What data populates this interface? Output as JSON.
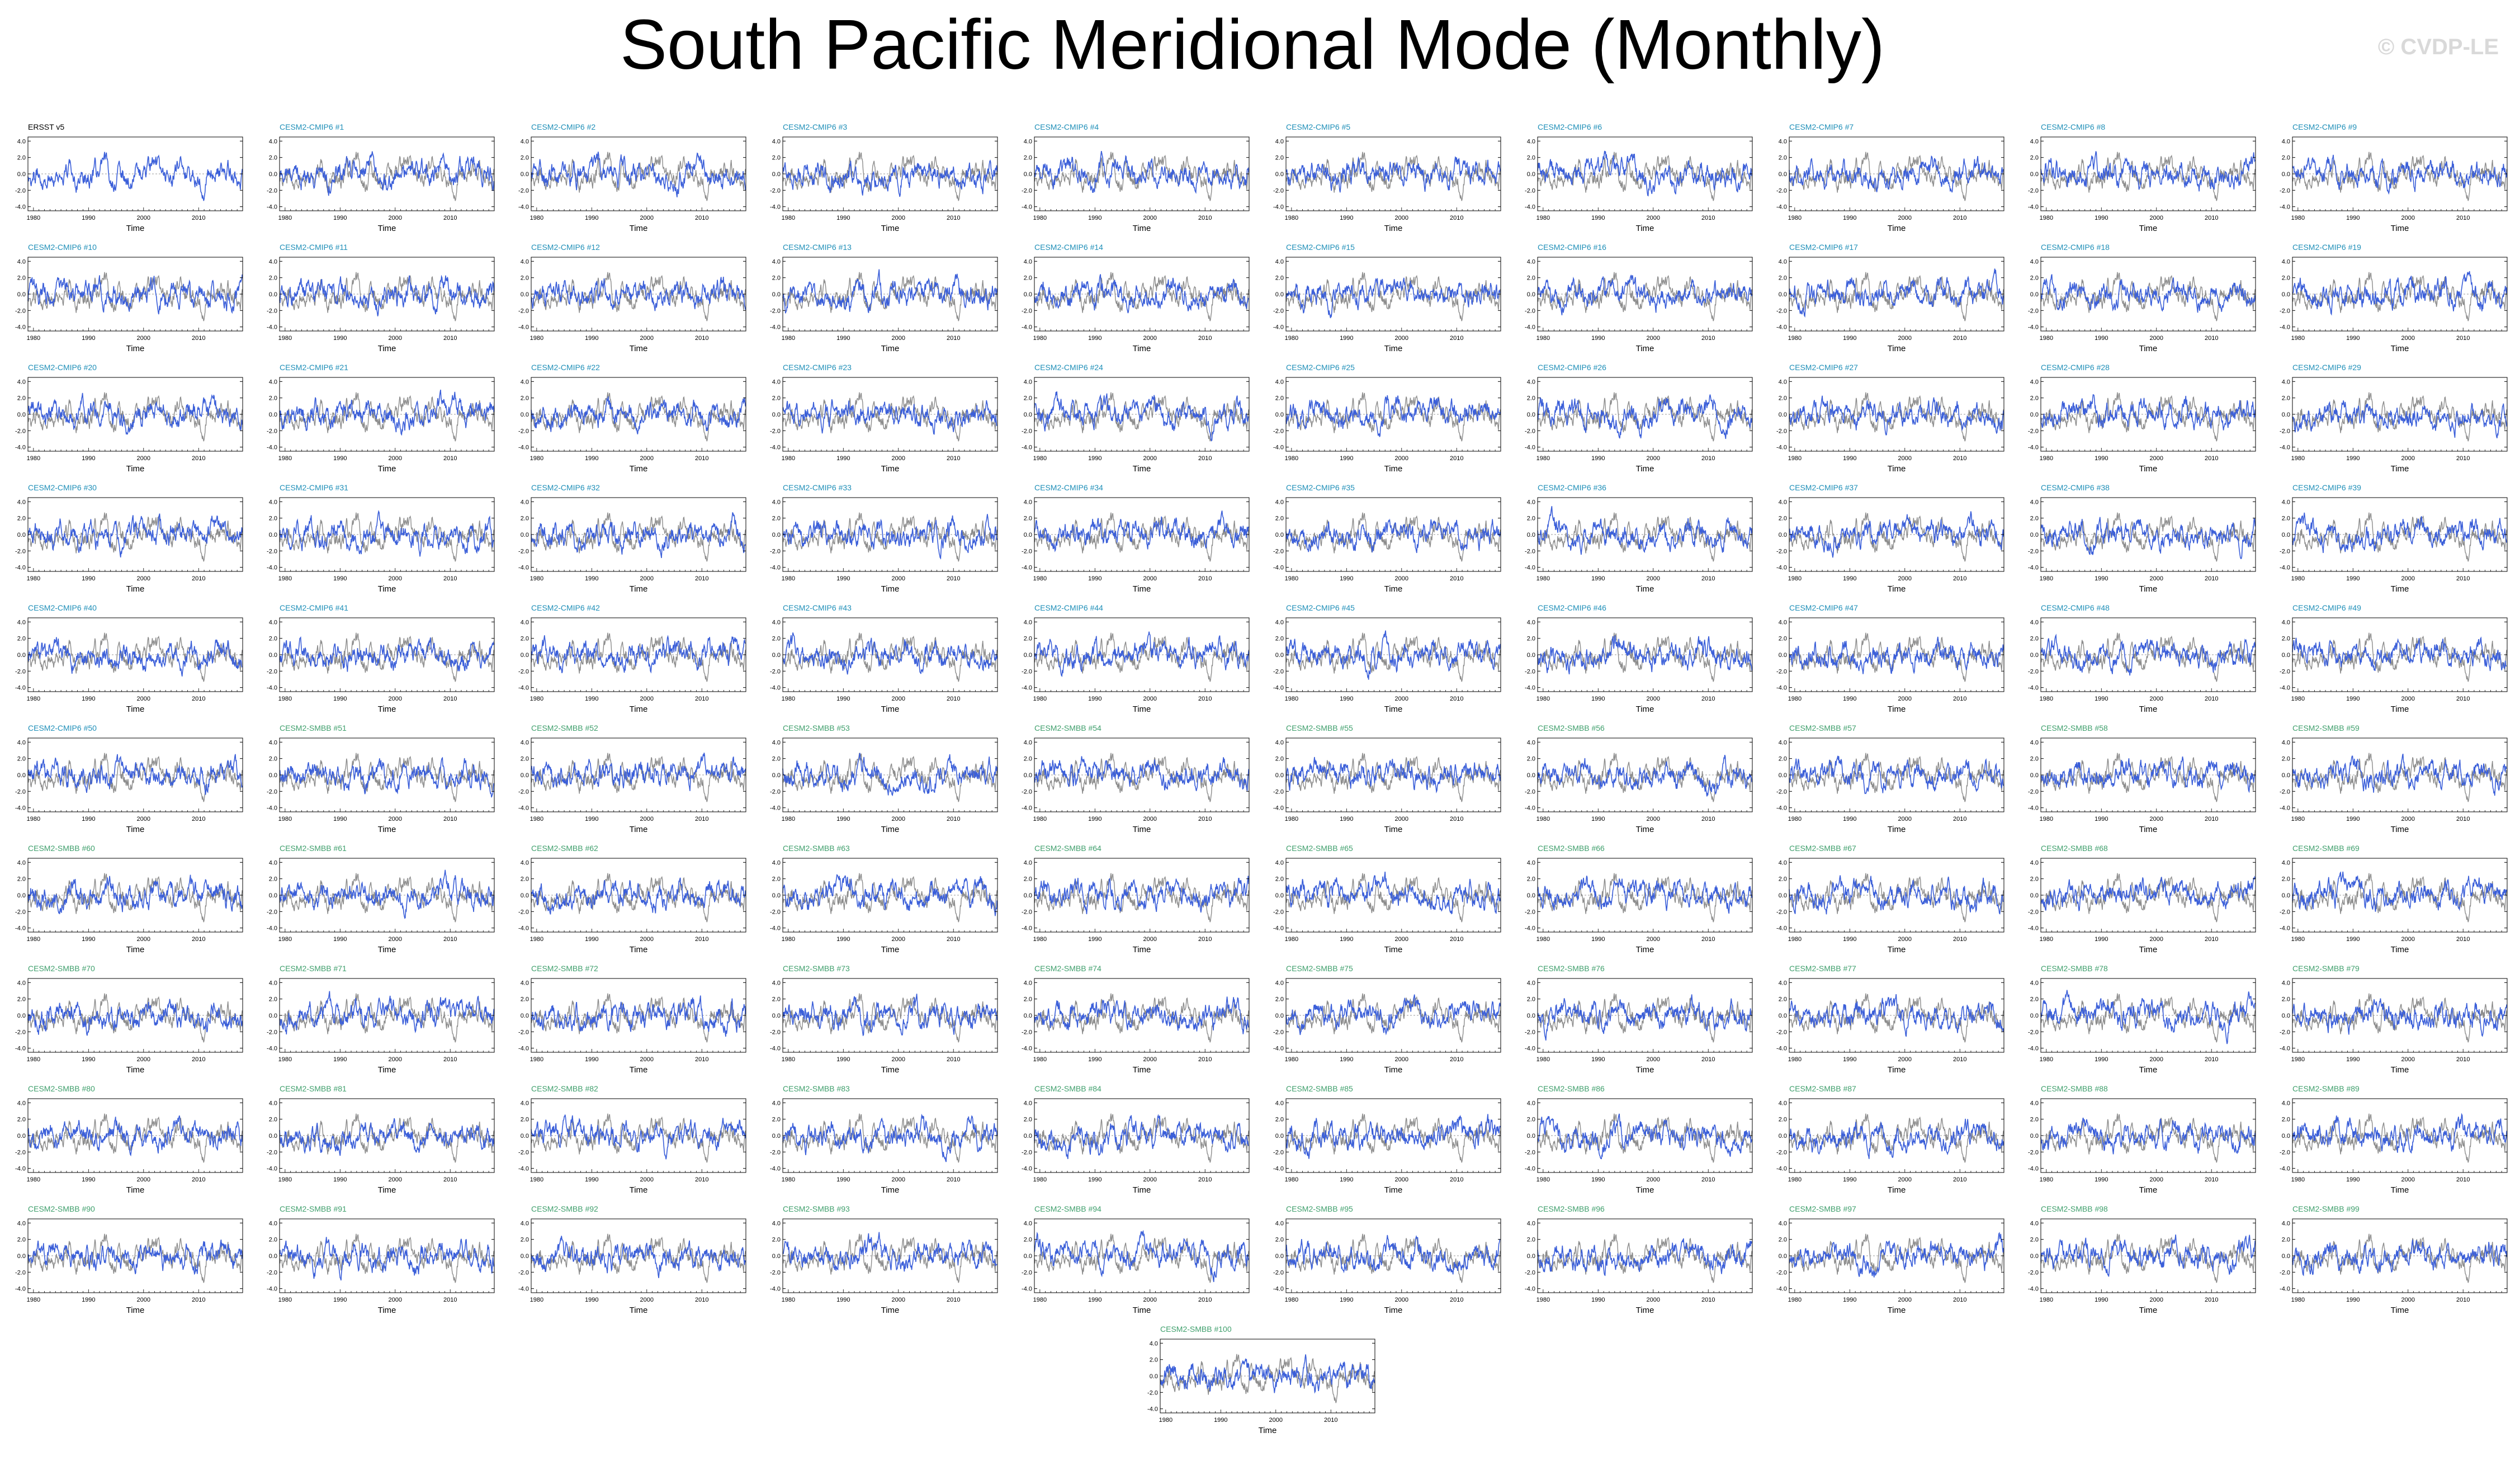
{
  "title": "South Pacific Meridional Mode (Monthly)",
  "watermark": "© CVDP-LE",
  "colors": {
    "observation_line": "#111111",
    "model_line": "#3b5fd9",
    "model_background_line": "#8c8c8c",
    "cmip6_title": "#1f8fb8",
    "smbb_title": "#3f9f6c",
    "obs_title": "#000000"
  },
  "chart_data": {
    "type": "line",
    "layout": "grid of 101 small multiples, 10 per row",
    "x_range": [
      1979,
      2018
    ],
    "x_ticks": [
      1980,
      1990,
      2000,
      2010
    ],
    "x_label": "Time",
    "y_ticks": [
      "4.0",
      "2.0",
      "0.0",
      "-2.0",
      "-4.0"
    ],
    "y_range": [
      -4.5,
      4.5
    ],
    "series_note": "monthly index; each model panel overlays the observed series",
    "panels": [
      {
        "title": "ERSST v5",
        "kind": "obs"
      },
      {
        "title": "CESM2-CMIP6 #1",
        "kind": "cmip6"
      },
      {
        "title": "CESM2-CMIP6 #2",
        "kind": "cmip6"
      },
      {
        "title": "CESM2-CMIP6 #3",
        "kind": "cmip6"
      },
      {
        "title": "CESM2-CMIP6 #4",
        "kind": "cmip6"
      },
      {
        "title": "CESM2-CMIP6 #5",
        "kind": "cmip6"
      },
      {
        "title": "CESM2-CMIP6 #6",
        "kind": "cmip6"
      },
      {
        "title": "CESM2-CMIP6 #7",
        "kind": "cmip6"
      },
      {
        "title": "CESM2-CMIP6 #8",
        "kind": "cmip6"
      },
      {
        "title": "CESM2-CMIP6 #9",
        "kind": "cmip6"
      },
      {
        "title": "CESM2-CMIP6 #10",
        "kind": "cmip6"
      },
      {
        "title": "CESM2-CMIP6 #11",
        "kind": "cmip6"
      },
      {
        "title": "CESM2-CMIP6 #12",
        "kind": "cmip6"
      },
      {
        "title": "CESM2-CMIP6 #13",
        "kind": "cmip6"
      },
      {
        "title": "CESM2-CMIP6 #14",
        "kind": "cmip6"
      },
      {
        "title": "CESM2-CMIP6 #15",
        "kind": "cmip6"
      },
      {
        "title": "CESM2-CMIP6 #16",
        "kind": "cmip6"
      },
      {
        "title": "CESM2-CMIP6 #17",
        "kind": "cmip6"
      },
      {
        "title": "CESM2-CMIP6 #18",
        "kind": "cmip6"
      },
      {
        "title": "CESM2-CMIP6 #19",
        "kind": "cmip6"
      },
      {
        "title": "CESM2-CMIP6 #20",
        "kind": "cmip6"
      },
      {
        "title": "CESM2-CMIP6 #21",
        "kind": "cmip6"
      },
      {
        "title": "CESM2-CMIP6 #22",
        "kind": "cmip6"
      },
      {
        "title": "CESM2-CMIP6 #23",
        "kind": "cmip6"
      },
      {
        "title": "CESM2-CMIP6 #24",
        "kind": "cmip6"
      },
      {
        "title": "CESM2-CMIP6 #25",
        "kind": "cmip6"
      },
      {
        "title": "CESM2-CMIP6 #26",
        "kind": "cmip6"
      },
      {
        "title": "CESM2-CMIP6 #27",
        "kind": "cmip6"
      },
      {
        "title": "CESM2-CMIP6 #28",
        "kind": "cmip6"
      },
      {
        "title": "CESM2-CMIP6 #29",
        "kind": "cmip6"
      },
      {
        "title": "CESM2-CMIP6 #30",
        "kind": "cmip6"
      },
      {
        "title": "CESM2-CMIP6 #31",
        "kind": "cmip6"
      },
      {
        "title": "CESM2-CMIP6 #32",
        "kind": "cmip6"
      },
      {
        "title": "CESM2-CMIP6 #33",
        "kind": "cmip6"
      },
      {
        "title": "CESM2-CMIP6 #34",
        "kind": "cmip6"
      },
      {
        "title": "CESM2-CMIP6 #35",
        "kind": "cmip6"
      },
      {
        "title": "CESM2-CMIP6 #36",
        "kind": "cmip6"
      },
      {
        "title": "CESM2-CMIP6 #37",
        "kind": "cmip6"
      },
      {
        "title": "CESM2-CMIP6 #38",
        "kind": "cmip6"
      },
      {
        "title": "CESM2-CMIP6 #39",
        "kind": "cmip6"
      },
      {
        "title": "CESM2-CMIP6 #40",
        "kind": "cmip6"
      },
      {
        "title": "CESM2-CMIP6 #41",
        "kind": "cmip6"
      },
      {
        "title": "CESM2-CMIP6 #42",
        "kind": "cmip6"
      },
      {
        "title": "CESM2-CMIP6 #43",
        "kind": "cmip6"
      },
      {
        "title": "CESM2-CMIP6 #44",
        "kind": "cmip6"
      },
      {
        "title": "CESM2-CMIP6 #45",
        "kind": "cmip6"
      },
      {
        "title": "CESM2-CMIP6 #46",
        "kind": "cmip6"
      },
      {
        "title": "CESM2-CMIP6 #47",
        "kind": "cmip6"
      },
      {
        "title": "CESM2-CMIP6 #48",
        "kind": "cmip6"
      },
      {
        "title": "CESM2-CMIP6 #49",
        "kind": "cmip6"
      },
      {
        "title": "CESM2-CMIP6 #50",
        "kind": "cmip6"
      },
      {
        "title": "CESM2-SMBB #51",
        "kind": "smbb"
      },
      {
        "title": "CESM2-SMBB #52",
        "kind": "smbb"
      },
      {
        "title": "CESM2-SMBB #53",
        "kind": "smbb"
      },
      {
        "title": "CESM2-SMBB #54",
        "kind": "smbb"
      },
      {
        "title": "CESM2-SMBB #55",
        "kind": "smbb"
      },
      {
        "title": "CESM2-SMBB #56",
        "kind": "smbb"
      },
      {
        "title": "CESM2-SMBB #57",
        "kind": "smbb"
      },
      {
        "title": "CESM2-SMBB #58",
        "kind": "smbb"
      },
      {
        "title": "CESM2-SMBB #59",
        "kind": "smbb"
      },
      {
        "title": "CESM2-SMBB #60",
        "kind": "smbb"
      },
      {
        "title": "CESM2-SMBB #61",
        "kind": "smbb"
      },
      {
        "title": "CESM2-SMBB #62",
        "kind": "smbb"
      },
      {
        "title": "CESM2-SMBB #63",
        "kind": "smbb"
      },
      {
        "title": "CESM2-SMBB #64",
        "kind": "smbb"
      },
      {
        "title": "CESM2-SMBB #65",
        "kind": "smbb"
      },
      {
        "title": "CESM2-SMBB #66",
        "kind": "smbb"
      },
      {
        "title": "CESM2-SMBB #67",
        "kind": "smbb"
      },
      {
        "title": "CESM2-SMBB #68",
        "kind": "smbb"
      },
      {
        "title": "CESM2-SMBB #69",
        "kind": "smbb"
      },
      {
        "title": "CESM2-SMBB #70",
        "kind": "smbb"
      },
      {
        "title": "CESM2-SMBB #71",
        "kind": "smbb"
      },
      {
        "title": "CESM2-SMBB #72",
        "kind": "smbb"
      },
      {
        "title": "CESM2-SMBB #73",
        "kind": "smbb"
      },
      {
        "title": "CESM2-SMBB #74",
        "kind": "smbb"
      },
      {
        "title": "CESM2-SMBB #75",
        "kind": "smbb"
      },
      {
        "title": "CESM2-SMBB #76",
        "kind": "smbb"
      },
      {
        "title": "CESM2-SMBB #77",
        "kind": "smbb"
      },
      {
        "title": "CESM2-SMBB #78",
        "kind": "smbb"
      },
      {
        "title": "CESM2-SMBB #79",
        "kind": "smbb"
      },
      {
        "title": "CESM2-SMBB #80",
        "kind": "smbb"
      },
      {
        "title": "CESM2-SMBB #81",
        "kind": "smbb"
      },
      {
        "title": "CESM2-SMBB #82",
        "kind": "smbb"
      },
      {
        "title": "CESM2-SMBB #83",
        "kind": "smbb"
      },
      {
        "title": "CESM2-SMBB #84",
        "kind": "smbb"
      },
      {
        "title": "CESM2-SMBB #85",
        "kind": "smbb"
      },
      {
        "title": "CESM2-SMBB #86",
        "kind": "smbb"
      },
      {
        "title": "CESM2-SMBB #87",
        "kind": "smbb"
      },
      {
        "title": "CESM2-SMBB #88",
        "kind": "smbb"
      },
      {
        "title": "CESM2-SMBB #89",
        "kind": "smbb"
      },
      {
        "title": "CESM2-SMBB #90",
        "kind": "smbb"
      },
      {
        "title": "CESM2-SMBB #91",
        "kind": "smbb"
      },
      {
        "title": "CESM2-SMBB #92",
        "kind": "smbb"
      },
      {
        "title": "CESM2-SMBB #93",
        "kind": "smbb"
      },
      {
        "title": "CESM2-SMBB #94",
        "kind": "smbb"
      },
      {
        "title": "CESM2-SMBB #95",
        "kind": "smbb"
      },
      {
        "title": "CESM2-SMBB #96",
        "kind": "smbb"
      },
      {
        "title": "CESM2-SMBB #97",
        "kind": "smbb"
      },
      {
        "title": "CESM2-SMBB #98",
        "kind": "smbb"
      },
      {
        "title": "CESM2-SMBB #99",
        "kind": "smbb"
      },
      {
        "title": "CESM2-SMBB #100",
        "kind": "smbb"
      }
    ]
  }
}
